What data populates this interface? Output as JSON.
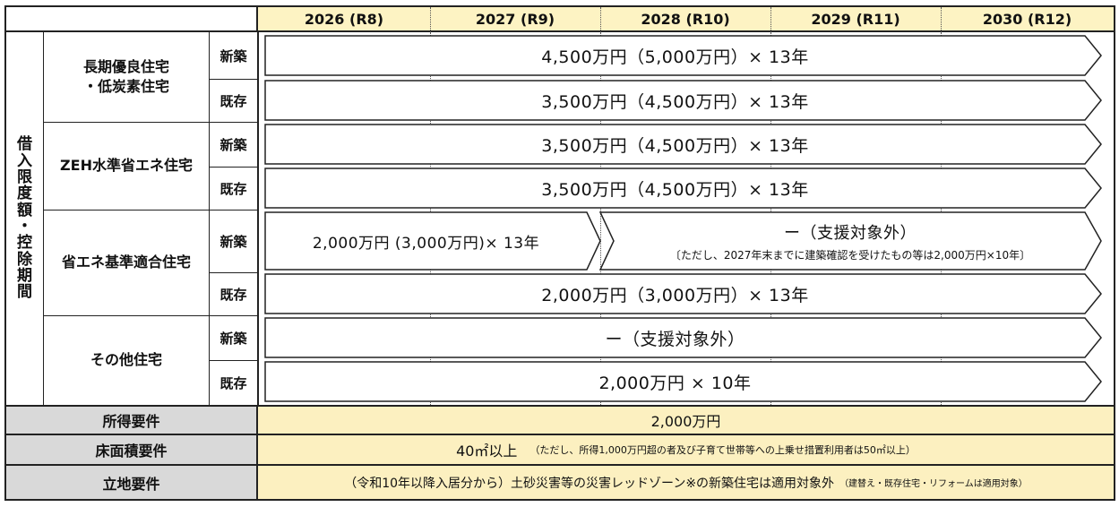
{
  "years": [
    "2026 (R8)",
    "2027 (R9)",
    "2028 (R10)",
    "2029 (R11)",
    "2030 (R12)"
  ],
  "side_label": [
    "借",
    "入",
    "限",
    "度",
    "額",
    "・",
    "控",
    "除",
    "期",
    "間"
  ],
  "categories": [
    {
      "name_line1": "長期優良住宅",
      "name_line2": "・低炭素住宅",
      "new_label": "新築",
      "new_value": "4,500万円（5,000万円）× 13年",
      "existing_label": "既存",
      "existing_value": "3,500万円（4,500万円）× 13年"
    },
    {
      "name_line1": "ZEH水準省エネ住宅",
      "name_line2": "",
      "new_label": "新築",
      "new_value": "3,500万円（4,500万円）× 13年",
      "existing_label": "既存",
      "existing_value": "3,500万円（4,500万円）× 13年"
    },
    {
      "name_line1": "省エネ基準適合住宅",
      "name_line2": "",
      "new_label": "新築",
      "new_value_part1": "2,000万円 (3,000万円)× 13年",
      "new_value_part2": "ー（支援対象外）",
      "new_value_note": "〔ただし、2027年末までに建築確認を受けたもの等は2,000万円×10年〕",
      "existing_label": "既存",
      "existing_value": "2,000万円（3,000万円）× 13年"
    },
    {
      "name_line1": "その他住宅",
      "name_line2": "",
      "new_label": "新築",
      "new_value": "ー（支援対象外）",
      "existing_label": "既存",
      "existing_value": "2,000万円 × 10年"
    }
  ],
  "income": {
    "label": "所得要件",
    "value": "2,000万円"
  },
  "floor": {
    "label": "床面積要件",
    "value": "40㎡以上",
    "note": "（ただし、所得1,000万円超の者及び子育て世帯等への上乗せ措置利用者は50㎡以上）"
  },
  "location": {
    "label": "立地要件",
    "value": "（令和10年以降入居分から）土砂災害等の災害レッドゾーン※の新築住宅は適用対象外",
    "note": "（建替え・既存住宅・リフォームは適用対象）"
  }
}
